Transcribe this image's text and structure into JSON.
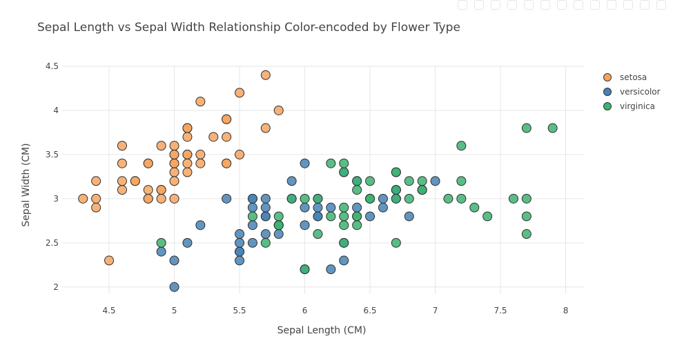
{
  "chart_data": {
    "type": "scatter",
    "title": "Sepal Length vs Sepal Width Relationship Color-encoded by Flower Type",
    "xlabel": "Sepal Length (CM)",
    "ylabel": "Sepal Width (CM)",
    "xlim": [
      4.14,
      8.14
    ],
    "ylim": [
      1.92,
      4.5
    ],
    "xticks": [
      4.5,
      5,
      5.5,
      6,
      6.5,
      7,
      7.5,
      8
    ],
    "xtick_labels": [
      "4.5",
      "5",
      "5.5",
      "6",
      "6.5",
      "7",
      "7.5",
      "8"
    ],
    "yticks": [
      2,
      2.5,
      3,
      3.5,
      4,
      4.5
    ],
    "ytick_labels": [
      "2",
      "2.5",
      "3",
      "3.5",
      "4",
      "4.5"
    ],
    "grid": true,
    "legend_position": "top-right",
    "series": [
      {
        "name": "setosa",
        "color": "#f4a460",
        "points": [
          [
            5.1,
            3.5
          ],
          [
            4.9,
            3.0
          ],
          [
            4.7,
            3.2
          ],
          [
            4.6,
            3.1
          ],
          [
            5.0,
            3.6
          ],
          [
            5.4,
            3.9
          ],
          [
            4.6,
            3.4
          ],
          [
            5.0,
            3.4
          ],
          [
            4.4,
            2.9
          ],
          [
            4.9,
            3.1
          ],
          [
            5.4,
            3.7
          ],
          [
            4.8,
            3.4
          ],
          [
            4.8,
            3.0
          ],
          [
            4.3,
            3.0
          ],
          [
            5.8,
            4.0
          ],
          [
            5.7,
            4.4
          ],
          [
            5.4,
            3.9
          ],
          [
            5.1,
            3.5
          ],
          [
            5.7,
            3.8
          ],
          [
            5.1,
            3.8
          ],
          [
            5.4,
            3.4
          ],
          [
            5.1,
            3.7
          ],
          [
            4.6,
            3.6
          ],
          [
            5.1,
            3.3
          ],
          [
            4.8,
            3.4
          ],
          [
            5.0,
            3.0
          ],
          [
            5.0,
            3.4
          ],
          [
            5.2,
            3.5
          ],
          [
            5.2,
            3.4
          ],
          [
            4.7,
            3.2
          ],
          [
            4.8,
            3.1
          ],
          [
            5.4,
            3.4
          ],
          [
            5.2,
            4.1
          ],
          [
            5.5,
            4.2
          ],
          [
            4.9,
            3.1
          ],
          [
            5.0,
            3.2
          ],
          [
            5.5,
            3.5
          ],
          [
            4.9,
            3.6
          ],
          [
            4.4,
            3.0
          ],
          [
            5.1,
            3.4
          ],
          [
            5.0,
            3.5
          ],
          [
            4.5,
            2.3
          ],
          [
            4.4,
            3.2
          ],
          [
            5.0,
            3.5
          ],
          [
            5.1,
            3.8
          ],
          [
            4.8,
            3.0
          ],
          [
            5.1,
            3.8
          ],
          [
            4.6,
            3.2
          ],
          [
            5.3,
            3.7
          ],
          [
            5.0,
            3.3
          ]
        ]
      },
      {
        "name": "versicolor",
        "color": "#4682b4",
        "points": [
          [
            7.0,
            3.2
          ],
          [
            6.4,
            3.2
          ],
          [
            6.9,
            3.1
          ],
          [
            5.5,
            2.3
          ],
          [
            6.5,
            2.8
          ],
          [
            5.7,
            2.8
          ],
          [
            6.3,
            3.3
          ],
          [
            4.9,
            2.4
          ],
          [
            6.6,
            2.9
          ],
          [
            5.2,
            2.7
          ],
          [
            5.0,
            2.0
          ],
          [
            5.9,
            3.0
          ],
          [
            6.0,
            2.2
          ],
          [
            6.1,
            2.9
          ],
          [
            5.6,
            2.9
          ],
          [
            6.7,
            3.1
          ],
          [
            5.6,
            3.0
          ],
          [
            5.8,
            2.7
          ],
          [
            6.2,
            2.2
          ],
          [
            5.6,
            2.5
          ],
          [
            5.9,
            3.2
          ],
          [
            6.1,
            2.8
          ],
          [
            6.3,
            2.5
          ],
          [
            6.1,
            2.8
          ],
          [
            6.4,
            2.9
          ],
          [
            6.6,
            3.0
          ],
          [
            6.8,
            2.8
          ],
          [
            6.7,
            3.0
          ],
          [
            6.0,
            2.9
          ],
          [
            5.7,
            2.6
          ],
          [
            5.5,
            2.4
          ],
          [
            5.5,
            2.4
          ],
          [
            5.8,
            2.7
          ],
          [
            6.0,
            2.7
          ],
          [
            5.4,
            3.0
          ],
          [
            6.0,
            3.4
          ],
          [
            6.7,
            3.1
          ],
          [
            6.3,
            2.3
          ],
          [
            5.6,
            3.0
          ],
          [
            5.5,
            2.5
          ],
          [
            5.5,
            2.6
          ],
          [
            6.1,
            3.0
          ],
          [
            5.8,
            2.6
          ],
          [
            5.0,
            2.3
          ],
          [
            5.6,
            2.7
          ],
          [
            5.7,
            3.0
          ],
          [
            5.7,
            2.9
          ],
          [
            6.2,
            2.9
          ],
          [
            5.1,
            2.5
          ],
          [
            5.7,
            2.8
          ]
        ]
      },
      {
        "name": "virginica",
        "color": "#3cb371",
        "points": [
          [
            6.3,
            3.3
          ],
          [
            5.8,
            2.7
          ],
          [
            7.1,
            3.0
          ],
          [
            6.3,
            2.9
          ],
          [
            6.5,
            3.0
          ],
          [
            7.6,
            3.0
          ],
          [
            4.9,
            2.5
          ],
          [
            7.3,
            2.9
          ],
          [
            6.7,
            2.5
          ],
          [
            7.2,
            3.6
          ],
          [
            6.5,
            3.2
          ],
          [
            6.4,
            2.7
          ],
          [
            6.8,
            3.0
          ],
          [
            5.7,
            2.5
          ],
          [
            5.8,
            2.8
          ],
          [
            6.4,
            3.2
          ],
          [
            6.5,
            3.0
          ],
          [
            7.7,
            3.8
          ],
          [
            7.7,
            2.6
          ],
          [
            6.0,
            2.2
          ],
          [
            6.9,
            3.2
          ],
          [
            5.6,
            2.8
          ],
          [
            7.7,
            2.8
          ],
          [
            6.3,
            2.7
          ],
          [
            6.7,
            3.3
          ],
          [
            7.2,
            3.2
          ],
          [
            6.2,
            2.8
          ],
          [
            6.1,
            3.0
          ],
          [
            6.4,
            2.8
          ],
          [
            7.2,
            3.0
          ],
          [
            7.4,
            2.8
          ],
          [
            7.9,
            3.8
          ],
          [
            6.4,
            2.8
          ],
          [
            6.3,
            2.8
          ],
          [
            6.1,
            2.6
          ],
          [
            7.7,
            3.0
          ],
          [
            6.3,
            3.4
          ],
          [
            6.4,
            3.1
          ],
          [
            6.0,
            3.0
          ],
          [
            6.9,
            3.1
          ],
          [
            6.7,
            3.1
          ],
          [
            6.9,
            3.1
          ],
          [
            5.8,
            2.7
          ],
          [
            6.8,
            3.2
          ],
          [
            6.7,
            3.3
          ],
          [
            6.7,
            3.0
          ],
          [
            6.3,
            2.5
          ],
          [
            6.5,
            3.0
          ],
          [
            6.2,
            3.4
          ],
          [
            5.9,
            3.0
          ]
        ]
      }
    ]
  }
}
